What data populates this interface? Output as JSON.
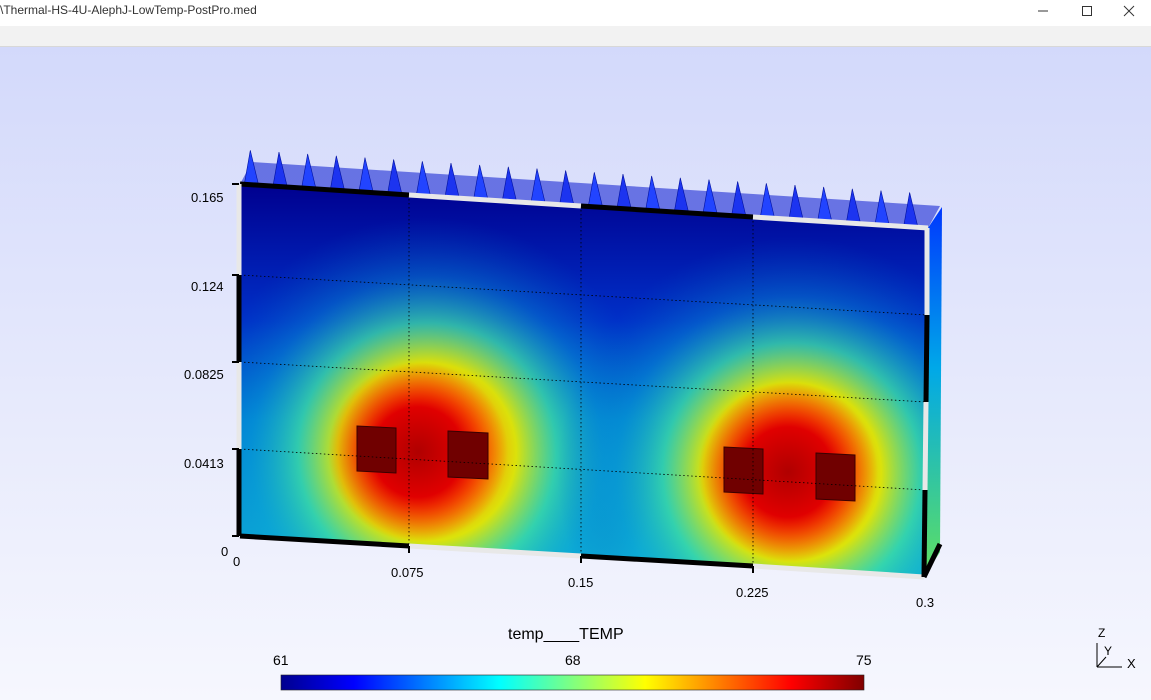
{
  "window": {
    "title": "\\Thermal-HS-4U-AlephJ-LowTemp-PostPro.med",
    "controls": {
      "minimize": "minimize-icon",
      "maximize": "maximize-icon",
      "close": "close-icon"
    }
  },
  "plot": {
    "y_ticks": [
      "0.165",
      "0.124",
      "0.0825",
      "0.0413",
      "0"
    ],
    "x_ticks": [
      "0",
      "0.075",
      "0.15",
      "0.225",
      "0.3"
    ],
    "field_name": "temp____TEMP",
    "scalar_bar": {
      "min": "61",
      "mid": "68",
      "max": "75"
    },
    "axes_triad": {
      "z": "Z",
      "y": "Y",
      "x": "X"
    }
  },
  "colors": {
    "viewport_top": "#d3d9fb",
    "viewport_bottom": "#f6f7fe",
    "cold": "#00008f",
    "hot": "#7f0000",
    "fin": "#1f3cff"
  }
}
